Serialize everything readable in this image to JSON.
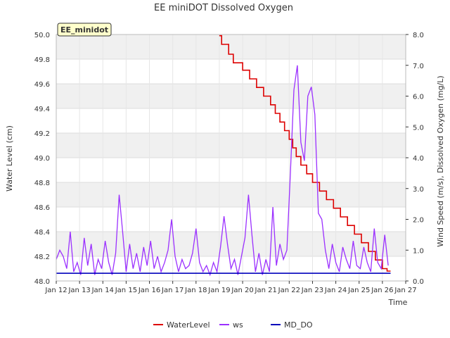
{
  "chart_data": {
    "type": "line",
    "title": "EE miniDOT Dissolved Oxygen",
    "badge": "EE_minidot",
    "xlabel": "Time",
    "ylabel_left": "Water Level (cm)",
    "ylabel_right": "Wind Speed (m/s), Dissolved Oxygen (mg/L)",
    "xlim": [
      12,
      27
    ],
    "ylim_left": [
      48.0,
      50.0
    ],
    "ylim_right": [
      0.0,
      8.0
    ],
    "x_ticks": [
      {
        "value": 12,
        "label": "Jan 12"
      },
      {
        "value": 13,
        "label": "Jan 13"
      },
      {
        "value": 14,
        "label": "Jan 14"
      },
      {
        "value": 15,
        "label": "Jan 15"
      },
      {
        "value": 16,
        "label": "Jan 16"
      },
      {
        "value": 17,
        "label": "Jan 17"
      },
      {
        "value": 18,
        "label": "Jan 18"
      },
      {
        "value": 19,
        "label": "Jan 19"
      },
      {
        "value": 20,
        "label": "Jan 20"
      },
      {
        "value": 21,
        "label": "Jan 21"
      },
      {
        "value": 22,
        "label": "Jan 22"
      },
      {
        "value": 23,
        "label": "Jan 23"
      },
      {
        "value": 24,
        "label": "Jan 24"
      },
      {
        "value": 25,
        "label": "Jan 25"
      },
      {
        "value": 26,
        "label": "Jan 26"
      },
      {
        "value": 27,
        "label": "Jan 27"
      }
    ],
    "y_ticks_left": [
      "48.0",
      "48.2",
      "48.4",
      "48.6",
      "48.8",
      "49.0",
      "49.2",
      "49.4",
      "49.6",
      "49.8",
      "50.0"
    ],
    "y_ticks_right": [
      "0.0",
      "1.0",
      "2.0",
      "3.0",
      "4.0",
      "5.0",
      "6.0",
      "7.0",
      "8.0"
    ],
    "grid": true,
    "legend_position": "bottom-center",
    "series": [
      {
        "name": "WaterLevel",
        "axis": "left",
        "color": "#dd0000",
        "step": true,
        "x": [
          19.0,
          19.1,
          19.4,
          19.6,
          20.0,
          20.3,
          20.6,
          20.9,
          21.2,
          21.4,
          21.6,
          21.8,
          22.0,
          22.15,
          22.3,
          22.5,
          22.75,
          23.0,
          23.3,
          23.6,
          23.9,
          24.2,
          24.5,
          24.8,
          25.1,
          25.4,
          25.7,
          26.0,
          26.2,
          26.35
        ],
        "values": [
          49.99,
          49.92,
          49.84,
          49.77,
          49.71,
          49.64,
          49.57,
          49.5,
          49.43,
          49.36,
          49.29,
          49.22,
          49.15,
          49.08,
          49.01,
          48.94,
          48.87,
          48.8,
          48.73,
          48.66,
          48.59,
          48.52,
          48.45,
          48.38,
          48.31,
          48.24,
          48.17,
          48.1,
          48.08,
          48.08
        ]
      },
      {
        "name": "ws",
        "axis": "right",
        "color": "#9b30ff",
        "step": false,
        "x": [
          12.0,
          12.15,
          12.3,
          12.45,
          12.6,
          12.75,
          12.9,
          13.05,
          13.2,
          13.35,
          13.5,
          13.65,
          13.8,
          13.95,
          14.1,
          14.25,
          14.4,
          14.55,
          14.7,
          14.85,
          15.0,
          15.15,
          15.3,
          15.45,
          15.6,
          15.75,
          15.9,
          16.05,
          16.2,
          16.35,
          16.5,
          16.65,
          16.8,
          16.95,
          17.1,
          17.25,
          17.4,
          17.55,
          17.7,
          17.85,
          18.0,
          18.15,
          18.3,
          18.45,
          18.6,
          18.75,
          18.9,
          19.05,
          19.2,
          19.35,
          19.5,
          19.65,
          19.8,
          19.95,
          20.1,
          20.25,
          20.4,
          20.55,
          20.7,
          20.85,
          21.0,
          21.15,
          21.3,
          21.45,
          21.6,
          21.75,
          21.9,
          22.05,
          22.2,
          22.35,
          22.5,
          22.65,
          22.8,
          22.95,
          23.1,
          23.25,
          23.4,
          23.55,
          23.7,
          23.85,
          24.0,
          24.15,
          24.3,
          24.45,
          24.6,
          24.75,
          24.9,
          25.05,
          25.2,
          25.35,
          25.5,
          25.65,
          25.8,
          25.95,
          26.1,
          26.25
        ],
        "values": [
          0.7,
          1.0,
          0.8,
          0.4,
          1.6,
          0.3,
          0.6,
          0.2,
          1.4,
          0.5,
          1.2,
          0.2,
          0.7,
          0.4,
          1.3,
          0.6,
          0.2,
          0.9,
          2.8,
          1.6,
          0.3,
          1.2,
          0.4,
          0.9,
          0.3,
          1.1,
          0.5,
          1.3,
          0.4,
          0.8,
          0.3,
          0.6,
          1.0,
          2.0,
          0.8,
          0.3,
          0.7,
          0.4,
          0.5,
          0.9,
          1.7,
          0.6,
          0.3,
          0.5,
          0.2,
          0.6,
          0.3,
          1.1,
          2.1,
          1.2,
          0.4,
          0.7,
          0.2,
          0.8,
          1.4,
          2.8,
          1.5,
          0.3,
          0.9,
          0.2,
          0.7,
          0.3,
          2.4,
          0.5,
          1.2,
          0.7,
          1.0,
          3.5,
          6.2,
          7.0,
          4.5,
          3.9,
          6.0,
          6.3,
          5.4,
          2.2,
          2.0,
          1.0,
          0.4,
          1.2,
          0.6,
          0.3,
          1.1,
          0.7,
          0.4,
          1.3,
          0.5,
          0.4,
          1.1,
          0.6,
          0.3,
          1.7,
          0.6,
          0.4,
          1.5,
          0.5
        ]
      },
      {
        "name": "MD_DO",
        "axis": "right",
        "color": "#0000bb",
        "step": false,
        "x": [
          12.0,
          26.35
        ],
        "values": [
          0.25,
          0.25
        ]
      }
    ]
  }
}
